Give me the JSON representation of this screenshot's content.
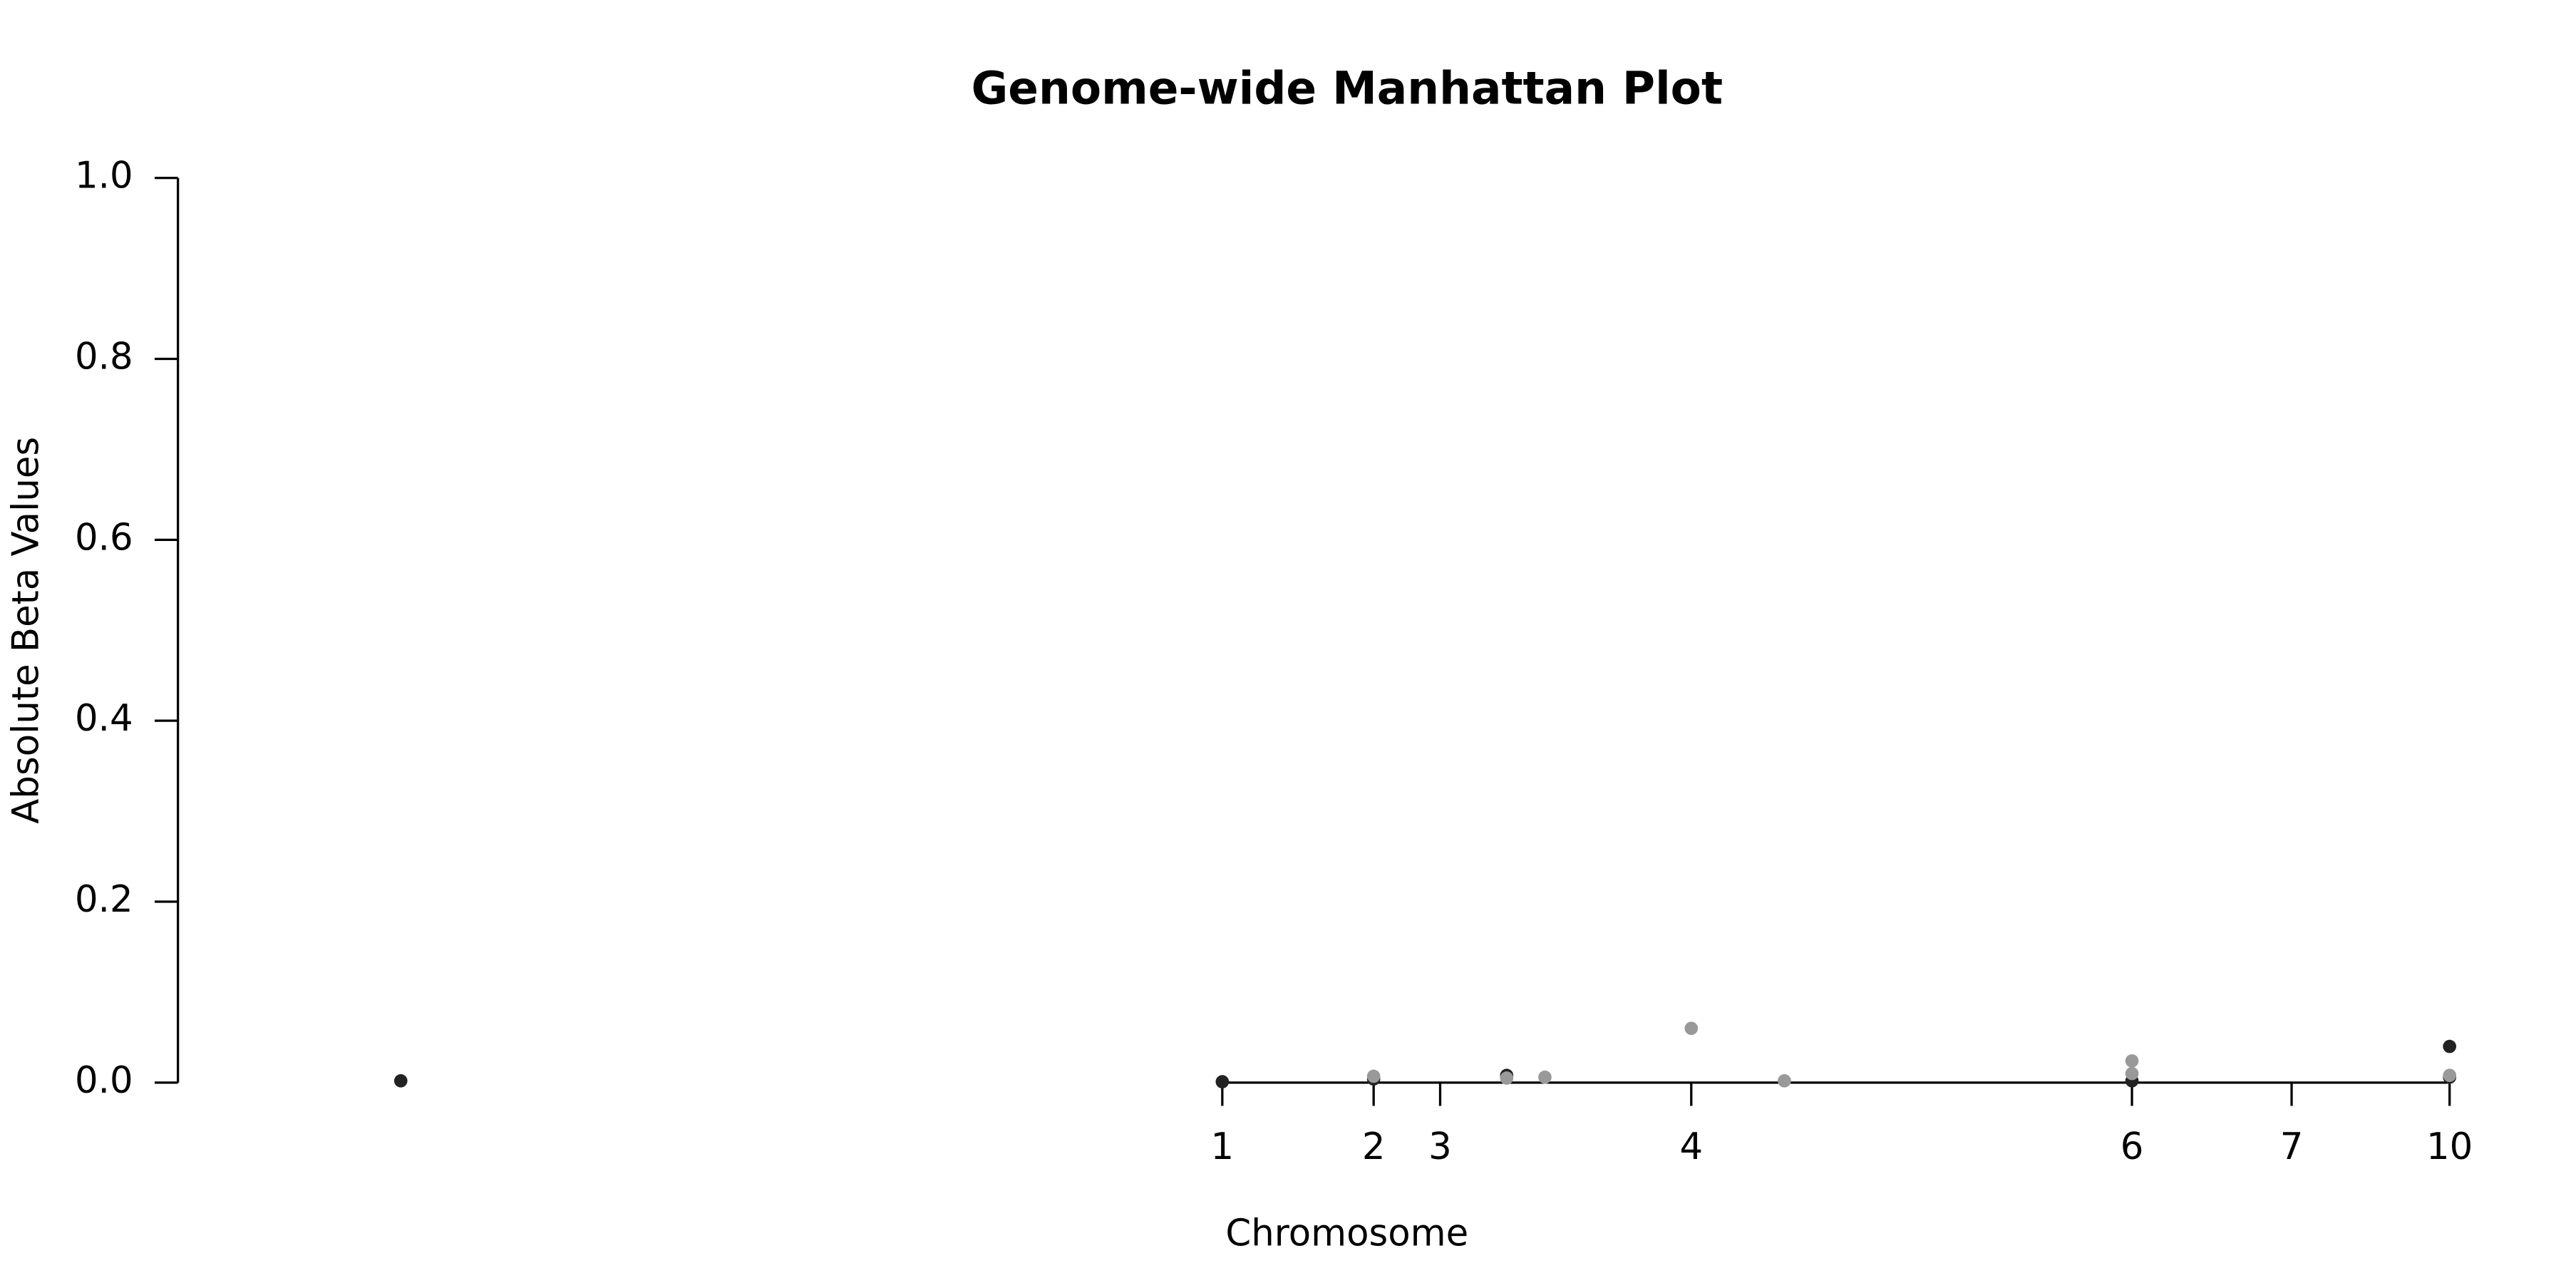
{
  "chart_data": {
    "type": "scatter",
    "title": "Genome-wide Manhattan Plot",
    "x_label": "Chromosome",
    "y_label": "Absolute Beta Values",
    "xlim": [
      0,
      1400
    ],
    "ylim": [
      0,
      1
    ],
    "xticks": [
      {
        "value": 628,
        "label": "1"
      },
      {
        "value": 719,
        "label": "2"
      },
      {
        "value": 759,
        "label": "3"
      },
      {
        "value": 910,
        "label": "4"
      },
      {
        "value": 1175,
        "label": "6"
      },
      {
        "value": 1271,
        "label": "7"
      },
      {
        "value": 1366,
        "label": "10"
      }
    ],
    "yticks": [
      {
        "value": 0,
        "label": "0.0"
      },
      0.2,
      0.4,
      0.6,
      0.8,
      {
        "value": 1,
        "label": "1.0"
      }
    ],
    "series": [
      {
        "color": "#222222",
        "x": [
          134,
          628,
          719,
          799,
          1175,
          1366,
          1366
        ],
        "values": [
          0.002,
          0.001,
          0.004,
          0.008,
          0.002,
          0.04,
          0.006
        ]
      },
      {
        "color": "#999999",
        "x": [
          719,
          799,
          822,
          910,
          966,
          1175,
          1175,
          1366
        ],
        "values": [
          0.007,
          0.005,
          0.006,
          0.06,
          0.002,
          0.024,
          0.01,
          0.008
        ]
      }
    ]
  }
}
